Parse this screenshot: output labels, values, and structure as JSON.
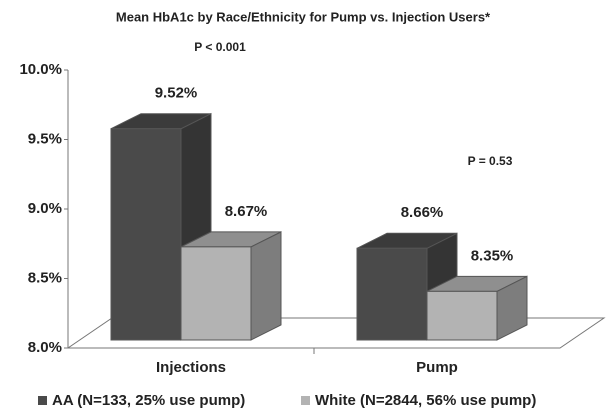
{
  "chart_data": {
    "type": "bar3d",
    "title": "Mean HbA1c by Race/Ethnicity for Pump vs. Injection Users*",
    "categories": [
      "Injections",
      "Pump"
    ],
    "series": [
      {
        "name": "AA (N=133, 25% use pump)",
        "color": "#4a4a4a",
        "values": [
          9.52,
          8.66
        ],
        "value_labels": [
          "9.52%",
          "8.66%"
        ]
      },
      {
        "name": "White (N=2844, 56% use pump)",
        "color": "#b3b3b3",
        "values": [
          8.67,
          8.35
        ],
        "value_labels": [
          "8.67%",
          "8.35%"
        ]
      }
    ],
    "annotations": [
      "P < 0.001",
      "P = 0.53"
    ],
    "ylim": [
      8.0,
      10.0
    ],
    "yticks": [
      {
        "value": 8.0,
        "label": "8.0%"
      },
      {
        "value": 8.5,
        "label": "8.5%"
      },
      {
        "value": 9.0,
        "label": "9.0%"
      },
      {
        "value": 9.5,
        "label": "9.5%"
      },
      {
        "value": 10.0,
        "label": "10.0%"
      }
    ],
    "legend": "bottom"
  }
}
